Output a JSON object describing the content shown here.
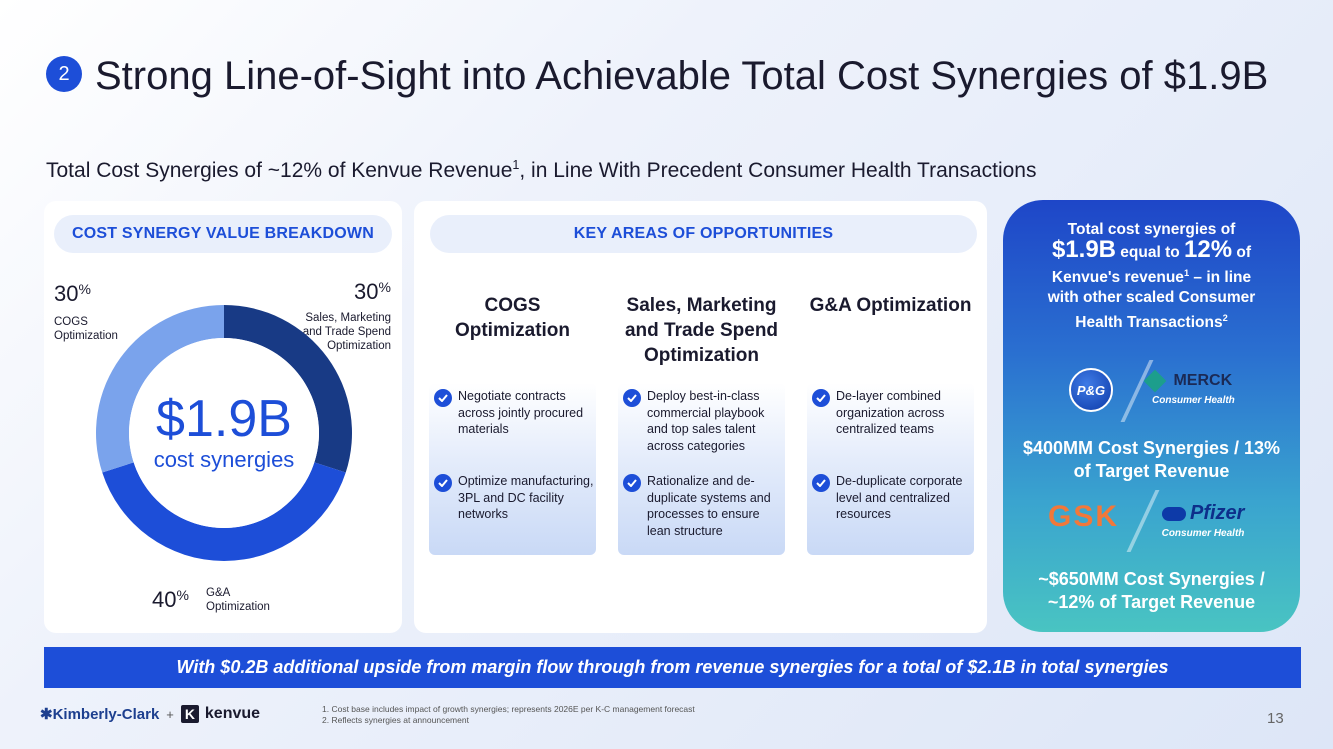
{
  "header": {
    "section_number": "2",
    "title": "Strong Line-of-Sight into Achievable Total Cost Synergies of $1.9B",
    "subtitle_main": "Total Cost Synergies of ~12% of Kenvue Revenue",
    "subtitle_sup": "1",
    "subtitle_end": ", in Line With Precedent Consumer Health Transactions"
  },
  "breakdown": {
    "heading": "COST SYNERGY VALUE BREAKDOWN",
    "center_value": "$1.9B",
    "center_label": "cost synergies",
    "percent_symbol": "%",
    "segments": [
      {
        "value": "30",
        "label": "COGS Optimization",
        "share": 30,
        "color": "#7aa3ec"
      },
      {
        "value": "30",
        "label": "Sales, Marketing and Trade Spend Optimization",
        "share": 30,
        "color": "#183a85"
      },
      {
        "value": "40",
        "label": "G&A Optimization",
        "share": 40,
        "color": "#1d4ed8"
      }
    ]
  },
  "opportunities": {
    "heading": "KEY AREAS OF OPPORTUNITIES",
    "columns": [
      {
        "title": "COGS Optimization",
        "bullets": [
          "Negotiate contracts across jointly procured materials",
          "Optimize manufacturing, 3PL and DC facility networks"
        ]
      },
      {
        "title": "Sales, Marketing and Trade Spend Optimization",
        "bullets": [
          "Deploy best-in-class commercial playbook and top sales talent across categories",
          "Rationalize and de-duplicate systems and processes to ensure lean structure"
        ]
      },
      {
        "title": "G&A Optimization",
        "bullets": [
          "De-layer combined organization across centralized teams",
          "De-duplicate corporate level and centralized resources"
        ]
      }
    ]
  },
  "precedents": {
    "line1": "Total cost synergies of",
    "value1": "$1.9B",
    "text_equal": " equal to ",
    "value2": "12%",
    "text_of": " of",
    "line3a": "Kenvue's revenue",
    "line3_sup": "1",
    "line3b": " – in line",
    "line4": "with other scaled Consumer",
    "line5": "Health Transactions",
    "line5_sup": "2",
    "deal1": {
      "logo_a": "P&G",
      "logo_b": "MERCK",
      "logo_b_sub": "Consumer Health",
      "value": "$400MM Cost Synergies / 13% of Target Revenue"
    },
    "deal2": {
      "logo_a": "GSK",
      "logo_b": "Pfizer",
      "logo_b_sub": "Consumer Health",
      "value": "~$650MM Cost Synergies / ~12% of Target Revenue"
    }
  },
  "banner": {
    "text": "With $0.2B additional upside from margin flow through from revenue synergies for a total of $2.1B in total synergies"
  },
  "footer": {
    "brand1": "Kimberly-Clark",
    "plus": "+",
    "brand2": "kenvue",
    "footnote1": "1.   Cost base includes impact of growth synergies; represents 2026E per K-C management forecast",
    "footnote2": "2.   Reflects synergies at announcement",
    "page_number": "13"
  },
  "colors": {
    "accent": "#1d4ed8",
    "dark_navy": "#183a85",
    "light_blue": "#7aa3ec"
  }
}
